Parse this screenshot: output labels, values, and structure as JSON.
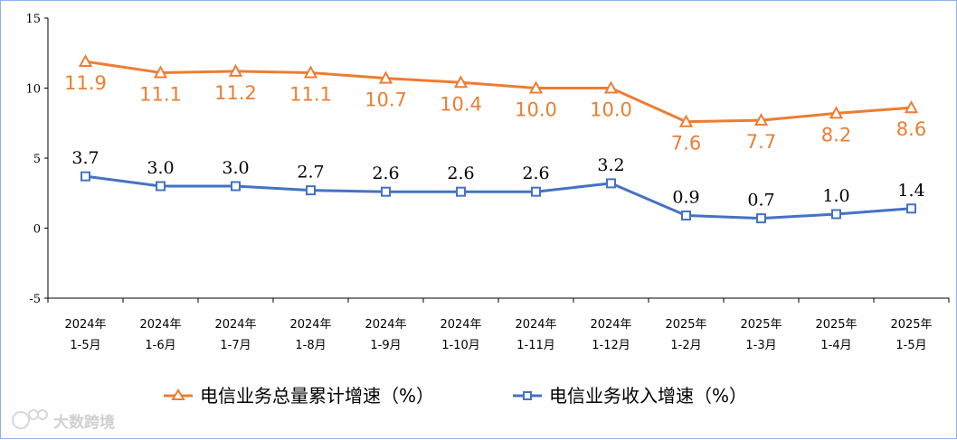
{
  "chart_data": {
    "type": "line",
    "title": "",
    "xlabel": "",
    "ylabel": "",
    "ylim": [
      -5,
      15
    ],
    "yticks": [
      "15",
      "10",
      "5",
      "0",
      "-5"
    ],
    "categories": [
      [
        "2024年",
        "1-5月"
      ],
      [
        "2024年",
        "1-6月"
      ],
      [
        "2024年",
        "1-7月"
      ],
      [
        "2024年",
        "1-8月"
      ],
      [
        "2024年",
        "1-9月"
      ],
      [
        "2024年",
        "1-10月"
      ],
      [
        "2024年",
        "1-11月"
      ],
      [
        "2024年",
        "1-12月"
      ],
      [
        "2025年",
        "1-2月"
      ],
      [
        "2025年",
        "1-3月"
      ],
      [
        "2025年",
        "1-4月"
      ],
      [
        "2025年",
        "1-5月"
      ]
    ],
    "series": [
      {
        "name": "电信业务总量累计增速（%）",
        "color": "#ed7d31",
        "marker": "triangle",
        "values": [
          11.9,
          11.1,
          11.2,
          11.1,
          10.7,
          10.4,
          10.0,
          10.0,
          7.6,
          7.7,
          8.2,
          8.6
        ],
        "labels": [
          "11.9",
          "11.1",
          "11.2",
          "11.1",
          "10.7",
          "10.4",
          "10.0",
          "10.0",
          "7.6",
          "7.7",
          "8.2",
          "8.6"
        ]
      },
      {
        "name": "电信业务收入增速（%）",
        "color": "#4472c4",
        "marker": "square",
        "values": [
          3.7,
          3.0,
          3.0,
          2.7,
          2.6,
          2.6,
          2.6,
          3.2,
          0.9,
          0.7,
          1.0,
          1.4
        ],
        "labels": [
          "3.7",
          "3.0",
          "3.0",
          "2.7",
          "2.6",
          "2.6",
          "2.6",
          "3.2",
          "0.9",
          "0.7",
          "1.0",
          "1.4"
        ]
      }
    ],
    "legend_position": "bottom"
  },
  "watermark": "大数跨境"
}
